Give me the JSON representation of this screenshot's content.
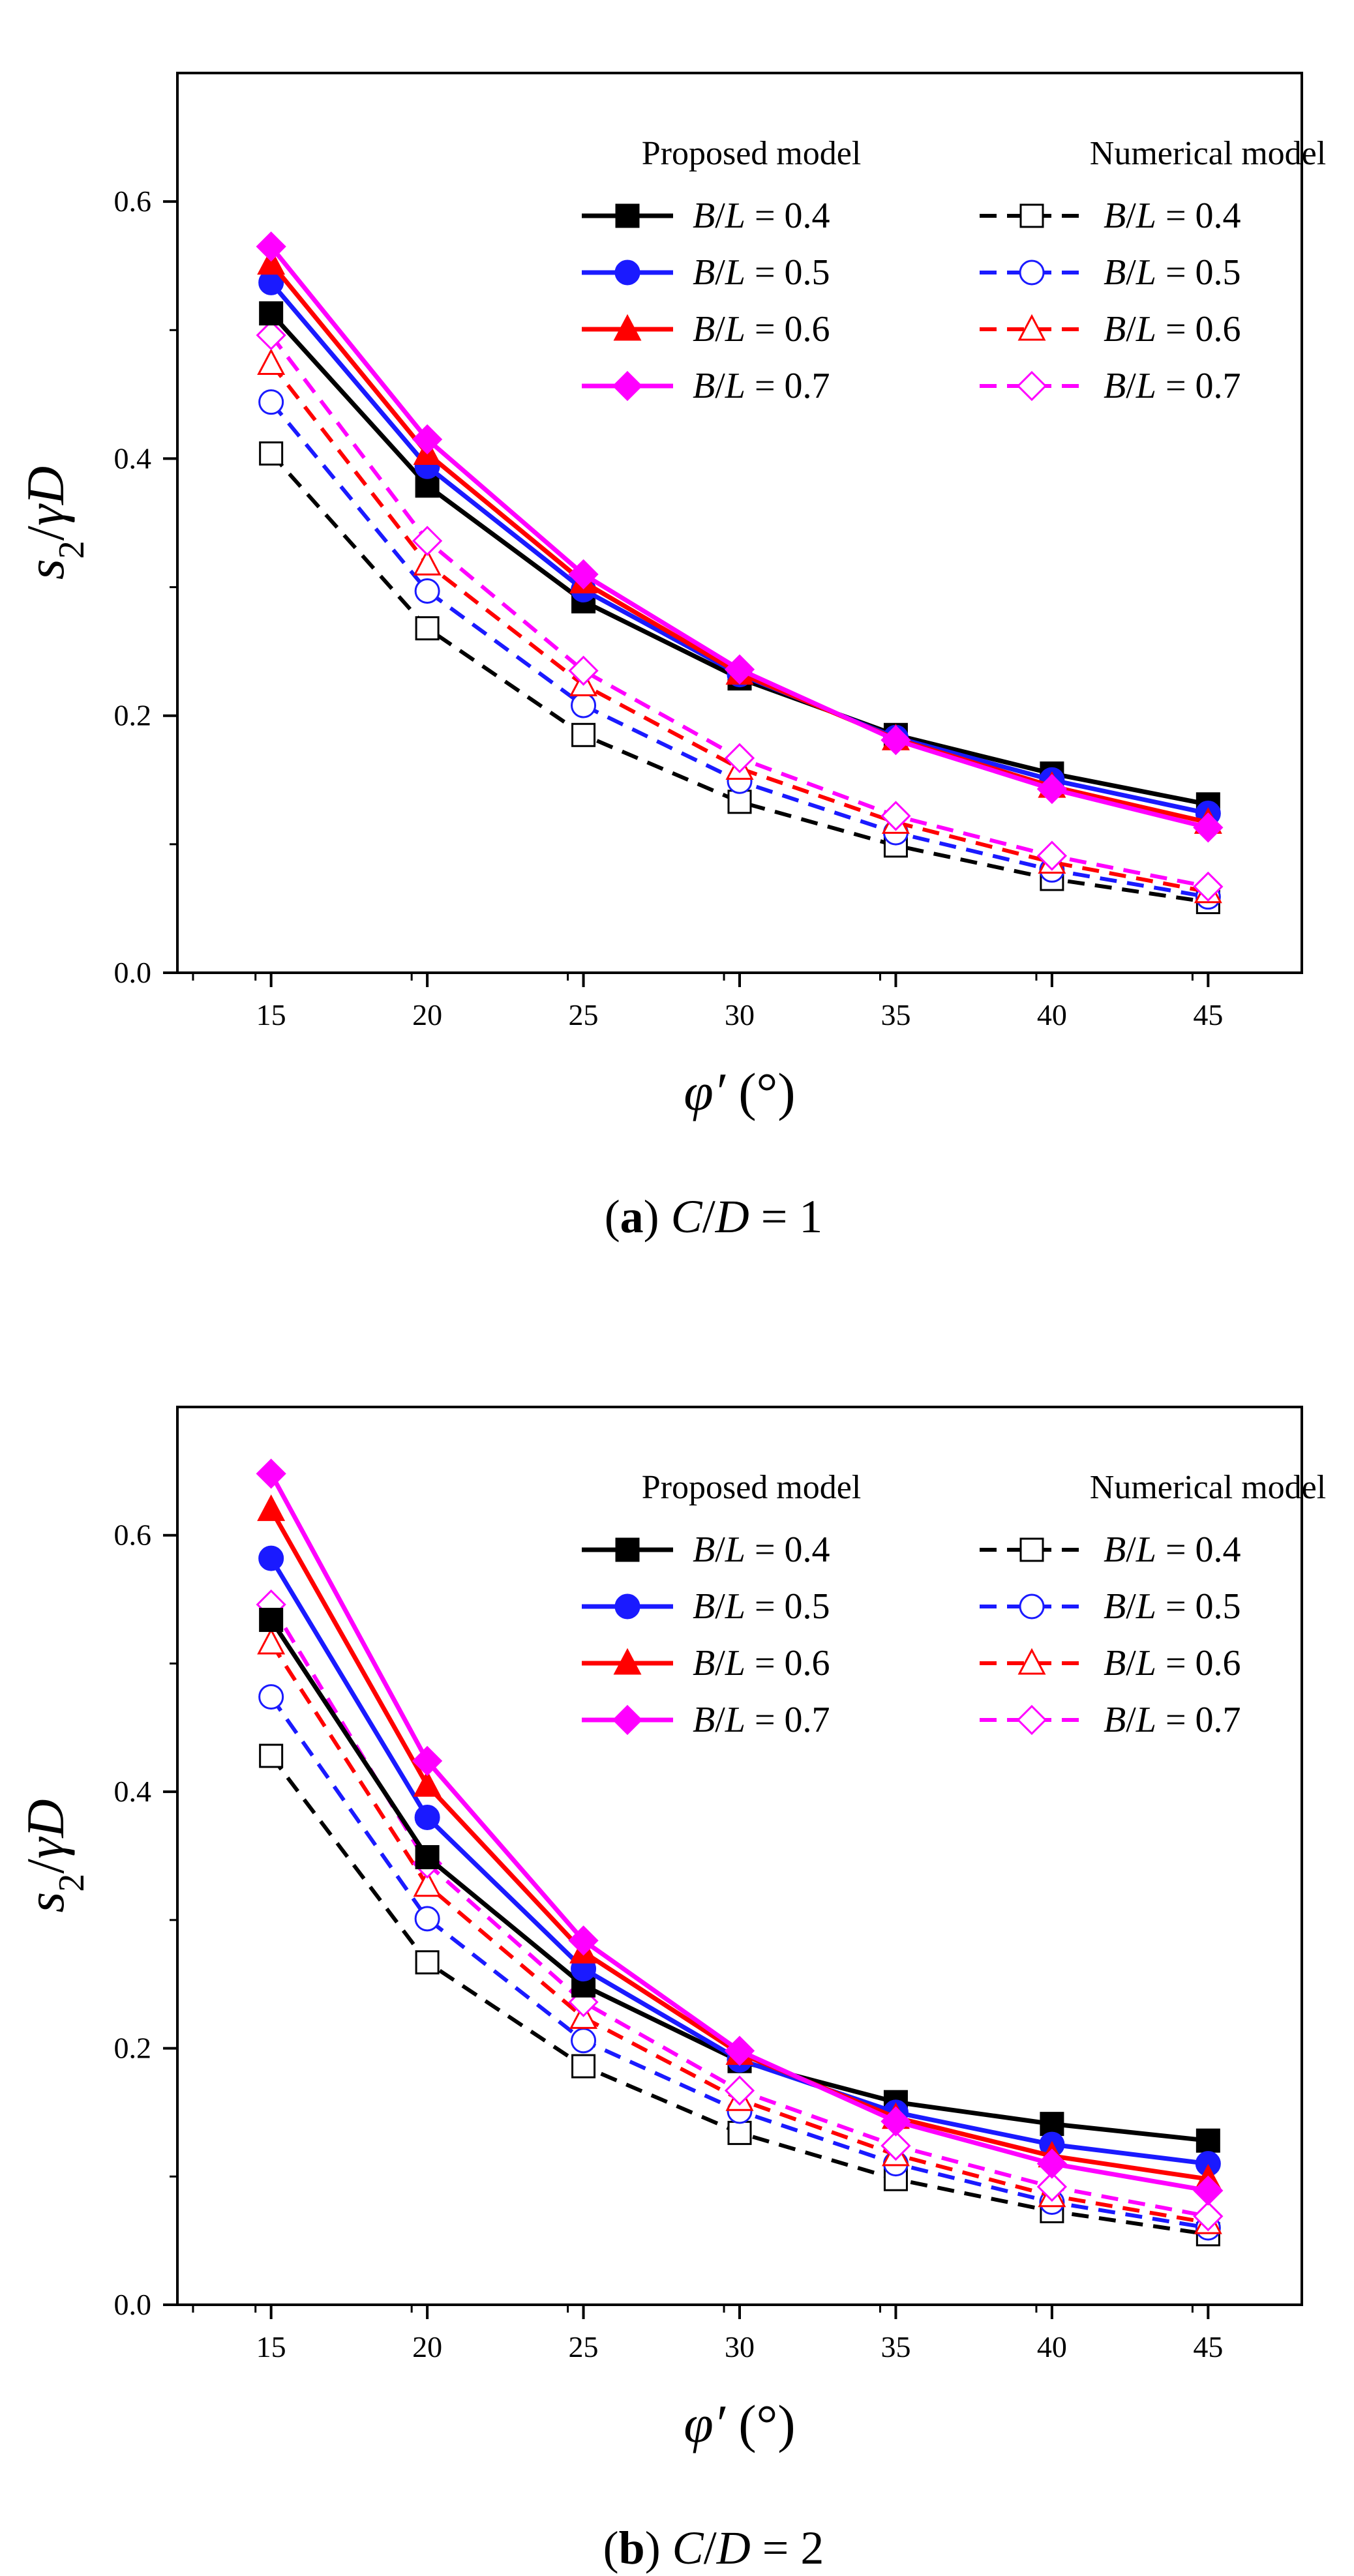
{
  "colors": {
    "black": "#000000",
    "blue": "#1a1aff",
    "red": "#ff0000",
    "magenta": "#ff00ff"
  },
  "chart_data": [
    {
      "type": "line",
      "caption": {
        "letter": "a",
        "text": "C/D = 1"
      },
      "xlabel": "φ′ (°)",
      "ylabel": "s2/γD",
      "x": [
        15,
        20,
        25,
        30,
        35,
        40,
        45
      ],
      "xlim": [
        12,
        48
      ],
      "ylim": [
        0.0,
        0.7
      ],
      "xticks": [
        "15",
        "20",
        "25",
        "30",
        "35",
        "40",
        "45"
      ],
      "yticks": [
        "0.0",
        "0.2",
        "0.4",
        "0.6"
      ],
      "legend": {
        "proposed_header": "Proposed model",
        "numerical_header": "Numerical model",
        "placement": "top-right"
      },
      "series": [
        {
          "name": "B/L = 0.4",
          "group": "proposed",
          "color": "#000000",
          "marker": "square",
          "values": [
            0.513,
            0.379,
            0.289,
            0.229,
            0.185,
            0.155,
            0.131
          ]
        },
        {
          "name": "B/L = 0.5",
          "group": "proposed",
          "color": "#1a1aff",
          "marker": "circle",
          "values": [
            0.537,
            0.394,
            0.298,
            0.232,
            0.183,
            0.15,
            0.124
          ]
        },
        {
          "name": "B/L = 0.6",
          "group": "proposed",
          "color": "#ff0000",
          "marker": "triangle",
          "values": [
            0.552,
            0.404,
            0.304,
            0.233,
            0.182,
            0.145,
            0.117
          ]
        },
        {
          "name": "B/L = 0.7",
          "group": "proposed",
          "color": "#ff00ff",
          "marker": "diamond",
          "values": [
            0.565,
            0.415,
            0.31,
            0.236,
            0.181,
            0.143,
            0.113
          ]
        },
        {
          "name": "B/L = 0.4",
          "group": "numerical",
          "color": "#000000",
          "marker": "square",
          "values": [
            0.404,
            0.268,
            0.185,
            0.133,
            0.099,
            0.073,
            0.055
          ]
        },
        {
          "name": "B/L = 0.5",
          "group": "numerical",
          "color": "#1a1aff",
          "marker": "circle",
          "values": [
            0.444,
            0.297,
            0.208,
            0.149,
            0.109,
            0.08,
            0.059
          ]
        },
        {
          "name": "B/L = 0.6",
          "group": "numerical",
          "color": "#ff0000",
          "marker": "triangle",
          "values": [
            0.474,
            0.318,
            0.224,
            0.159,
            0.117,
            0.086,
            0.063
          ]
        },
        {
          "name": "B/L = 0.7",
          "group": "numerical",
          "color": "#ff00ff",
          "marker": "diamond",
          "values": [
            0.496,
            0.336,
            0.235,
            0.167,
            0.122,
            0.091,
            0.067
          ]
        }
      ]
    },
    {
      "type": "line",
      "caption": {
        "letter": "b",
        "text": "C/D = 2"
      },
      "xlabel": "φ′ (°)",
      "ylabel": "s2/γD",
      "x": [
        15,
        20,
        25,
        30,
        35,
        40,
        45
      ],
      "xlim": [
        12,
        48
      ],
      "ylim": [
        0.0,
        0.7
      ],
      "xticks": [
        "15",
        "20",
        "25",
        "30",
        "35",
        "40",
        "45"
      ],
      "yticks": [
        "0.0",
        "0.2",
        "0.4",
        "0.6"
      ],
      "legend": {
        "proposed_header": "Proposed model",
        "numerical_header": "Numerical model",
        "placement": "top-right"
      },
      "series": [
        {
          "name": "B/L = 0.4",
          "group": "proposed",
          "color": "#000000",
          "marker": "square",
          "values": [
            0.534,
            0.349,
            0.249,
            0.19,
            0.158,
            0.141,
            0.128
          ]
        },
        {
          "name": "B/L = 0.5",
          "group": "proposed",
          "color": "#1a1aff",
          "marker": "circle",
          "values": [
            0.582,
            0.38,
            0.262,
            0.191,
            0.15,
            0.125,
            0.11
          ]
        },
        {
          "name": "B/L = 0.6",
          "group": "proposed",
          "color": "#ff0000",
          "marker": "triangle",
          "values": [
            0.62,
            0.405,
            0.275,
            0.196,
            0.146,
            0.116,
            0.098
          ]
        },
        {
          "name": "B/L = 0.7",
          "group": "proposed",
          "color": "#ff00ff",
          "marker": "diamond",
          "values": [
            0.648,
            0.424,
            0.284,
            0.198,
            0.143,
            0.11,
            0.089
          ]
        },
        {
          "name": "B/L = 0.4",
          "group": "numerical",
          "color": "#000000",
          "marker": "square",
          "values": [
            0.428,
            0.267,
            0.186,
            0.134,
            0.098,
            0.073,
            0.055
          ]
        },
        {
          "name": "B/L = 0.5",
          "group": "numerical",
          "color": "#1a1aff",
          "marker": "circle",
          "values": [
            0.474,
            0.301,
            0.206,
            0.151,
            0.11,
            0.08,
            0.06
          ]
        },
        {
          "name": "B/L = 0.6",
          "group": "numerical",
          "color": "#ff0000",
          "marker": "triangle",
          "values": [
            0.516,
            0.327,
            0.224,
            0.16,
            0.117,
            0.085,
            0.064
          ]
        },
        {
          "name": "B/L = 0.7",
          "group": "numerical",
          "color": "#ff00ff",
          "marker": "diamond",
          "values": [
            0.546,
            0.344,
            0.236,
            0.167,
            0.124,
            0.092,
            0.069
          ]
        }
      ]
    }
  ]
}
